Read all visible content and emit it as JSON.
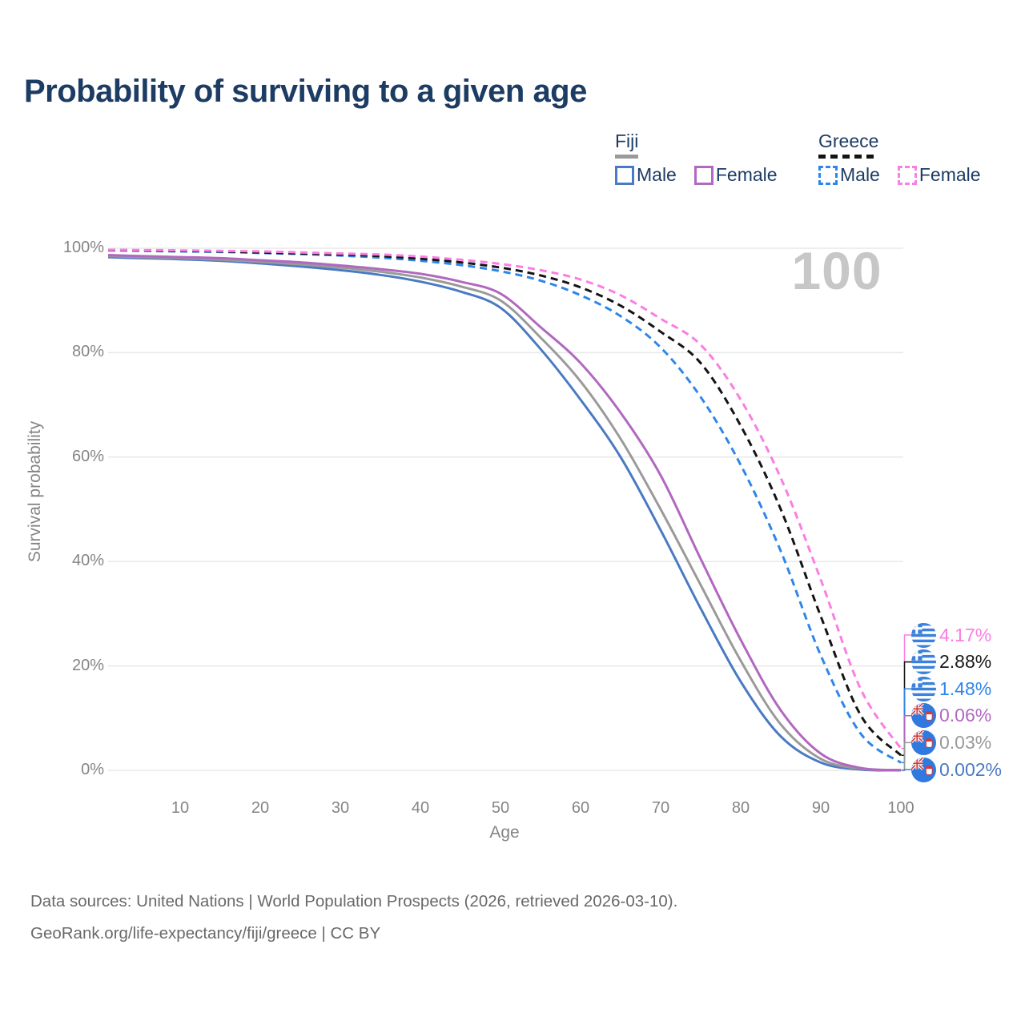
{
  "page": {
    "title": "Probability of surviving to a given age"
  },
  "watermark": {
    "hovered_age": "100"
  },
  "legend": {
    "groups": [
      {
        "country": "Fiji",
        "line_style": "solid",
        "underline_color": "#9a9a9a",
        "items": [
          {
            "label": "Male",
            "color": "#4a7ac2",
            "dashed": false
          },
          {
            "label": "Female",
            "color": "#b168bf",
            "dashed": false
          }
        ]
      },
      {
        "country": "Greece",
        "line_style": "dashed",
        "underline_color": "#141414",
        "items": [
          {
            "label": "Male",
            "color": "#2e86ea",
            "dashed": true
          },
          {
            "label": "Female",
            "color": "#fb7ee2",
            "dashed": true
          }
        ]
      }
    ]
  },
  "chart_data": {
    "type": "line",
    "title": "Probability of surviving to a given age",
    "xlabel": "Age",
    "ylabel": "Survival probability",
    "xlim": [
      0,
      100
    ],
    "ylim": [
      0,
      100
    ],
    "grid": "horizontal-only",
    "legend_position": "top-right",
    "x_ticks": [
      {
        "label": "10",
        "value": 10
      },
      {
        "label": "20",
        "value": 20
      },
      {
        "label": "30",
        "value": 30
      },
      {
        "label": "40",
        "value": 40
      },
      {
        "label": "50",
        "value": 50
      },
      {
        "label": "60",
        "value": 60
      },
      {
        "label": "70",
        "value": 70
      },
      {
        "label": "80",
        "value": 80
      },
      {
        "label": "90",
        "value": 90
      },
      {
        "label": "100",
        "value": 100
      }
    ],
    "y_ticks": [
      {
        "label": "0%",
        "value": 0
      },
      {
        "label": "20%",
        "value": 20
      },
      {
        "label": "40%",
        "value": 40
      },
      {
        "label": "60%",
        "value": 60
      },
      {
        "label": "80%",
        "value": 80
      },
      {
        "label": "100%",
        "value": 100
      }
    ],
    "ages": [
      1,
      5,
      10,
      15,
      20,
      25,
      30,
      35,
      40,
      45,
      50,
      55,
      60,
      65,
      70,
      75,
      80,
      85,
      90,
      95,
      100
    ],
    "series": [
      {
        "name": "Fiji Male",
        "country": "Fiji",
        "sex": "Male",
        "color": "#4a7ac2",
        "dashed": false,
        "flag": "fiji",
        "end_label": "0.002%",
        "end_label_color": "#4a7ac2",
        "label_order": 5,
        "values": [
          98.3,
          98.1,
          97.9,
          97.6,
          97.1,
          96.5,
          95.8,
          94.9,
          93.6,
          91.7,
          88.6,
          80.7,
          71.0,
          60.0,
          46.0,
          31.0,
          17.0,
          6.5,
          1.5,
          0.15,
          0.002
        ]
      },
      {
        "name": "Fiji",
        "country": "Fiji",
        "sex": "Both",
        "color": "#9a9a9a",
        "dashed": false,
        "flag": "fiji",
        "end_label": "0.03%",
        "end_label_color": "#9a9a9a",
        "label_order": 4,
        "values": [
          98.5,
          98.3,
          98.1,
          97.8,
          97.4,
          96.9,
          96.3,
          95.5,
          94.4,
          92.7,
          90.0,
          82.9,
          74.5,
          63.5,
          50.0,
          35.5,
          21.0,
          8.8,
          2.2,
          0.3,
          0.03
        ]
      },
      {
        "name": "Fiji Female",
        "country": "Fiji",
        "sex": "Female",
        "color": "#b168bf",
        "dashed": false,
        "flag": "fiji",
        "end_label": "0.06%",
        "end_label_color": "#b168bf",
        "label_order": 3,
        "values": [
          98.7,
          98.5,
          98.3,
          98.1,
          97.7,
          97.3,
          96.7,
          96.0,
          95.1,
          93.6,
          91.3,
          84.9,
          78.0,
          68.5,
          56.5,
          40.5,
          25.0,
          11.5,
          3.2,
          0.45,
          0.06
        ]
      },
      {
        "name": "Greece Male",
        "country": "Greece",
        "sex": "Male",
        "color": "#2e86ea",
        "dashed": true,
        "flag": "greece",
        "end_label": "1.48%",
        "end_label_color": "#2e86ea",
        "label_order": 2,
        "values": [
          99.6,
          99.5,
          99.4,
          99.3,
          99.1,
          98.9,
          98.6,
          98.2,
          97.6,
          96.8,
          95.6,
          93.8,
          91.0,
          87.0,
          81.0,
          71.5,
          58.5,
          42.0,
          22.0,
          7.0,
          1.48
        ]
      },
      {
        "name": "Greece",
        "country": "Greece",
        "sex": "Both",
        "color": "#141414",
        "dashed": true,
        "flag": "greece",
        "end_label": "2.88%",
        "end_label_color": "#1a1a1a",
        "label_order": 1,
        "values": [
          99.65,
          99.6,
          99.5,
          99.4,
          99.2,
          99.0,
          98.8,
          98.5,
          98.0,
          97.3,
          96.3,
          94.8,
          92.5,
          89.0,
          84.0,
          78.0,
          66.0,
          50.0,
          29.5,
          10.5,
          2.88
        ]
      },
      {
        "name": "Greece Female",
        "country": "Greece",
        "sex": "Female",
        "color": "#fb7ee2",
        "dashed": true,
        "flag": "greece",
        "end_label": "4.17%",
        "end_label_color": "#fb7ee2",
        "label_order": 0,
        "values": [
          99.7,
          99.65,
          99.6,
          99.5,
          99.4,
          99.2,
          99.0,
          98.8,
          98.4,
          97.8,
          97.0,
          95.8,
          94.0,
          91.0,
          86.5,
          81.5,
          71.0,
          56.0,
          36.5,
          15.5,
          4.17
        ]
      }
    ]
  },
  "footer": {
    "line1": "Data sources: United Nations | World Population Prospects (2026, retrieved 2026-03-10).",
    "line2": "GeoRank.org/life-expectancy/fiji/greece | CC BY"
  }
}
